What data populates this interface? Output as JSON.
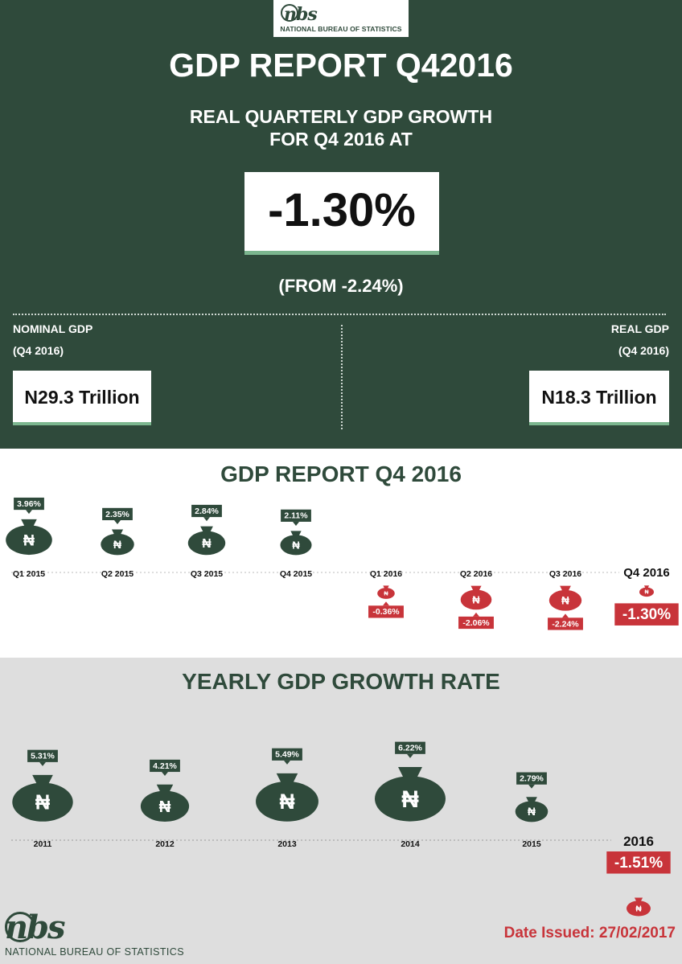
{
  "header": {
    "logo_mark": "nbs",
    "logo_name": "NATIONAL BUREAU OF STATISTICS",
    "title": "GDP REPORT Q42016",
    "subtitle_line1": "REAL QUARTERLY GDP GROWTH",
    "subtitle_line2": "FOR Q4 2016 AT",
    "growth_value": "-1.30%",
    "from_text": "(FROM -2.24%)",
    "nominal": {
      "label": "NOMINAL GDP",
      "period": "(Q4 2016)",
      "value": "N29.3 Trillion"
    },
    "real": {
      "label": "REAL GDP",
      "period": "(Q4 2016)",
      "value": "N18.3 Trillion"
    }
  },
  "quarterly": {
    "title": "GDP REPORT Q4 2016"
  },
  "yearly": {
    "title": "YEARLY GDP GROWTH RATE"
  },
  "footer": {
    "logo_mark": "nbs",
    "logo_name": "NATIONAL BUREAU OF STATISTICS",
    "date_issued": "Date Issued: 27/02/2017"
  },
  "colors": {
    "green": "#2f4a3b",
    "red": "#c8343a",
    "accent": "#7cb68f",
    "grey_bg": "#dedede"
  },
  "currency_symbol": "₦",
  "chart_data": [
    {
      "type": "bar",
      "title": "GDP REPORT Q4 2016",
      "categories": [
        "Q1 2015",
        "Q2 2015",
        "Q3 2015",
        "Q4 2015",
        "Q1 2016",
        "Q2 2016",
        "Q3 2016",
        "Q4 2016"
      ],
      "values": [
        3.96,
        2.35,
        2.84,
        2.11,
        -0.36,
        -2.06,
        -2.24,
        -1.3
      ],
      "labels": [
        "3.96%",
        "2.35%",
        "2.84%",
        "2.11%",
        "-0.36%",
        "-2.06%",
        "-2.24%",
        "-1.30%"
      ],
      "highlight": "Q4 2016"
    },
    {
      "type": "bar",
      "title": "YEARLY GDP GROWTH RATE",
      "categories": [
        "2011",
        "2012",
        "2013",
        "2014",
        "2015",
        "2016"
      ],
      "values": [
        5.31,
        4.21,
        5.49,
        6.22,
        2.79,
        -1.51
      ],
      "labels": [
        "5.31%",
        "4.21%",
        "5.49%",
        "6.22%",
        "2.79%",
        "-1.51%"
      ],
      "highlight": "2016"
    }
  ]
}
